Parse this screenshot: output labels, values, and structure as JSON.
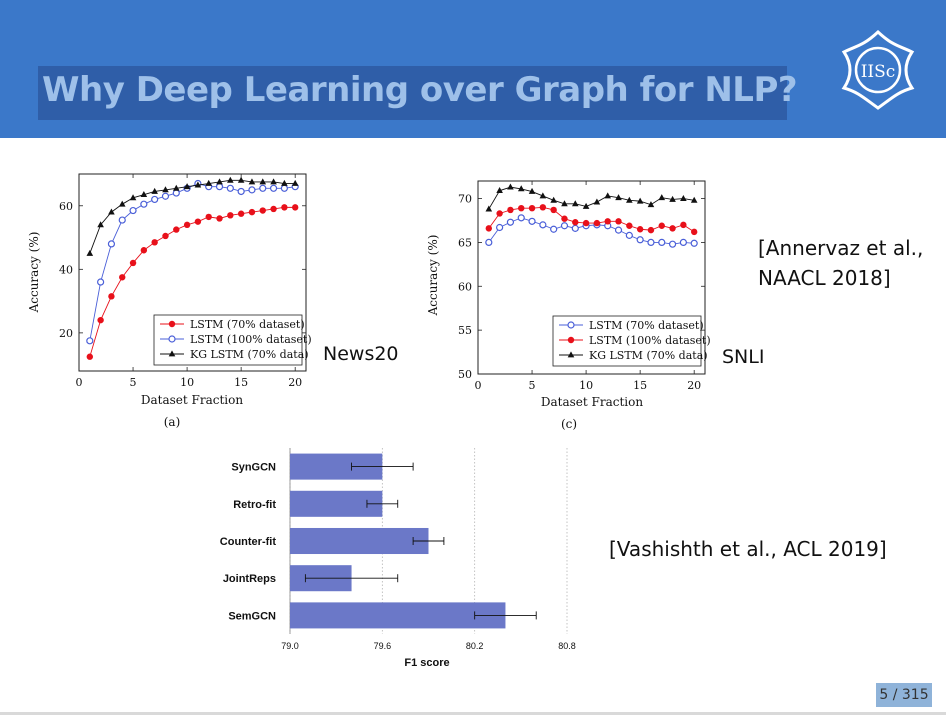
{
  "slide": {
    "title": "Why Deep Learning over Graph for NLP?",
    "logo_text": "IISc",
    "page_number": "5 / 315",
    "colors": {
      "header": "#3b78c9",
      "title_box": "#2f5ea8",
      "title_text": "#9ec0e9",
      "bar": "#6b78c8"
    }
  },
  "annotations": {
    "news20": "News20",
    "snli": "SNLI",
    "cite_annervaz_line1": "[Annervaz et al.,",
    "cite_annervaz_line2": "NAACL 2018]",
    "cite_vashishth": "[Vashishth et al., ACL 2019]"
  },
  "chart_data": [
    {
      "type": "line",
      "caption": "(a)",
      "xlabel": "Dataset Fraction",
      "ylabel": "Accuracy (%)",
      "xlim": [
        0,
        21
      ],
      "ylim": [
        8,
        70
      ],
      "xticks": [
        0,
        5,
        10,
        15,
        20
      ],
      "yticks": [
        20,
        40,
        60
      ],
      "legend_position": "bottom-right",
      "x": [
        1,
        2,
        3,
        4,
        5,
        6,
        7,
        8,
        9,
        10,
        11,
        12,
        13,
        14,
        15,
        16,
        17,
        18,
        19,
        20
      ],
      "series": [
        {
          "name": "LSTM (70% dataset)",
          "color": "#e8101a",
          "marker": "dot",
          "values": [
            12.5,
            24,
            31.5,
            37.5,
            42,
            46,
            48.5,
            50.5,
            52.5,
            54,
            55,
            56.5,
            56,
            57,
            57.5,
            58,
            58.5,
            59,
            59.5,
            59.5
          ]
        },
        {
          "name": "LSTM (100% dataset)",
          "color": "#4a5fd8",
          "marker": "circle",
          "values": [
            17.5,
            36,
            48,
            55.5,
            58.5,
            60.5,
            62,
            63,
            64,
            65.5,
            67,
            66,
            66,
            65.5,
            64.5,
            65,
            65.5,
            65.5,
            65.5,
            66
          ]
        },
        {
          "name": "KG LSTM (70% data)",
          "color": "#111111",
          "marker": "triangle",
          "values": [
            45,
            54,
            58,
            60.5,
            62.5,
            63.5,
            64.5,
            65,
            65.5,
            66,
            66.5,
            67,
            67.5,
            68,
            68,
            67.5,
            67.5,
            67.5,
            67,
            67
          ]
        }
      ]
    },
    {
      "type": "line",
      "caption": "(c)",
      "xlabel": "Dataset Fraction",
      "ylabel": "Accuracy (%)",
      "xlim": [
        0,
        21
      ],
      "ylim": [
        50,
        72
      ],
      "xticks": [
        0,
        5,
        10,
        15,
        20
      ],
      "yticks": [
        50,
        55,
        60,
        65,
        70
      ],
      "legend_position": "bottom-right",
      "x": [
        1,
        2,
        3,
        4,
        5,
        6,
        7,
        8,
        9,
        10,
        11,
        12,
        13,
        14,
        15,
        16,
        17,
        18,
        19,
        20
      ],
      "series": [
        {
          "name": "LSTM (70% dataset)",
          "color": "#4a5fd8",
          "marker": "circle",
          "values": [
            65,
            66.7,
            67.3,
            67.8,
            67.4,
            67,
            66.5,
            66.9,
            66.6,
            66.9,
            67,
            66.9,
            66.4,
            65.8,
            65.3,
            65,
            65,
            64.8,
            65,
            64.9
          ]
        },
        {
          "name": "LSTM (100% dataset)",
          "color": "#e8101a",
          "marker": "dot",
          "values": [
            66.6,
            68.3,
            68.7,
            68.9,
            68.9,
            69,
            68.7,
            67.7,
            67.3,
            67.2,
            67.2,
            67.4,
            67.4,
            66.9,
            66.5,
            66.4,
            66.9,
            66.6,
            67,
            66.2
          ]
        },
        {
          "name": "KG LSTM (70% data)",
          "color": "#111111",
          "marker": "triangle",
          "values": [
            68.8,
            70.9,
            71.3,
            71.1,
            70.8,
            70.3,
            69.8,
            69.4,
            69.4,
            69.1,
            69.6,
            70.3,
            70.1,
            69.8,
            69.7,
            69.3,
            70.1,
            69.9,
            70,
            69.8
          ]
        }
      ]
    },
    {
      "type": "bar",
      "orientation": "horizontal",
      "xlabel": "F1 score",
      "ylabel": "",
      "xlim": [
        79.0,
        80.8
      ],
      "xticks": [
        79.0,
        79.6,
        80.2,
        80.8
      ],
      "tick_labels": [
        "79.0",
        "79.6",
        "80.2",
        "80.8"
      ],
      "grid": "vertical dotted",
      "categories": [
        "SynGCN",
        "Retro-fit",
        "Counter-fit",
        "JointReps",
        "SemGCN"
      ],
      "values": [
        79.6,
        79.6,
        79.9,
        79.4,
        80.4
      ],
      "error": [
        0.2,
        0.1,
        0.1,
        0.3,
        0.2
      ],
      "color": "#6b78c8"
    }
  ]
}
